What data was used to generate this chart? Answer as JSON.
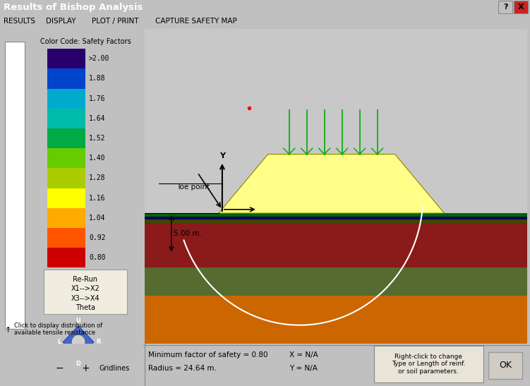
{
  "title": "Results of Bishop Analysis",
  "menu_items": [
    "RESULTS",
    "DISPLAY",
    "PLOT / PRINT",
    "CAPTURE SAFETY MAP"
  ],
  "window_bg": "#c0c0c0",
  "title_bar_color": "#000080",
  "title_bar_text_color": "#ffffff",
  "colorbar_labels": [
    ">2.00",
    "1.88",
    "1.76",
    "1.64",
    "1.52",
    "1.40",
    "1.28",
    "1.16",
    "1.04",
    "0.92",
    "0.80"
  ],
  "colorbar_colors": [
    "#28006e",
    "#0044cc",
    "#00aacc",
    "#00bbaa",
    "#00aa44",
    "#66cc00",
    "#aacc00",
    "#ffff00",
    "#ffaa00",
    "#ff5500",
    "#cc0000"
  ],
  "colorbar_title": "Color Code: Safety Factors",
  "slip_circle_color": "#ffffff",
  "reinforcement_color": "#00aa00",
  "label_5m": "5.00 m.",
  "toe_label": "Toe point",
  "status_text1": "Minimum factor of safety = 0.80",
  "status_text2": "Radius = 24.64 m.",
  "status_text3": "X = N/A",
  "status_text4": "Y = N/A",
  "status_text5": "Right-click to change\nType or Length of reinf.\nor soil parameters.",
  "ok_button": "OK",
  "sidebar_text": [
    "Re-Run",
    "X1-->X2",
    "X3-->X4",
    "Theta"
  ],
  "click_text": "Click to display distribution of\navailable tensile resistance"
}
